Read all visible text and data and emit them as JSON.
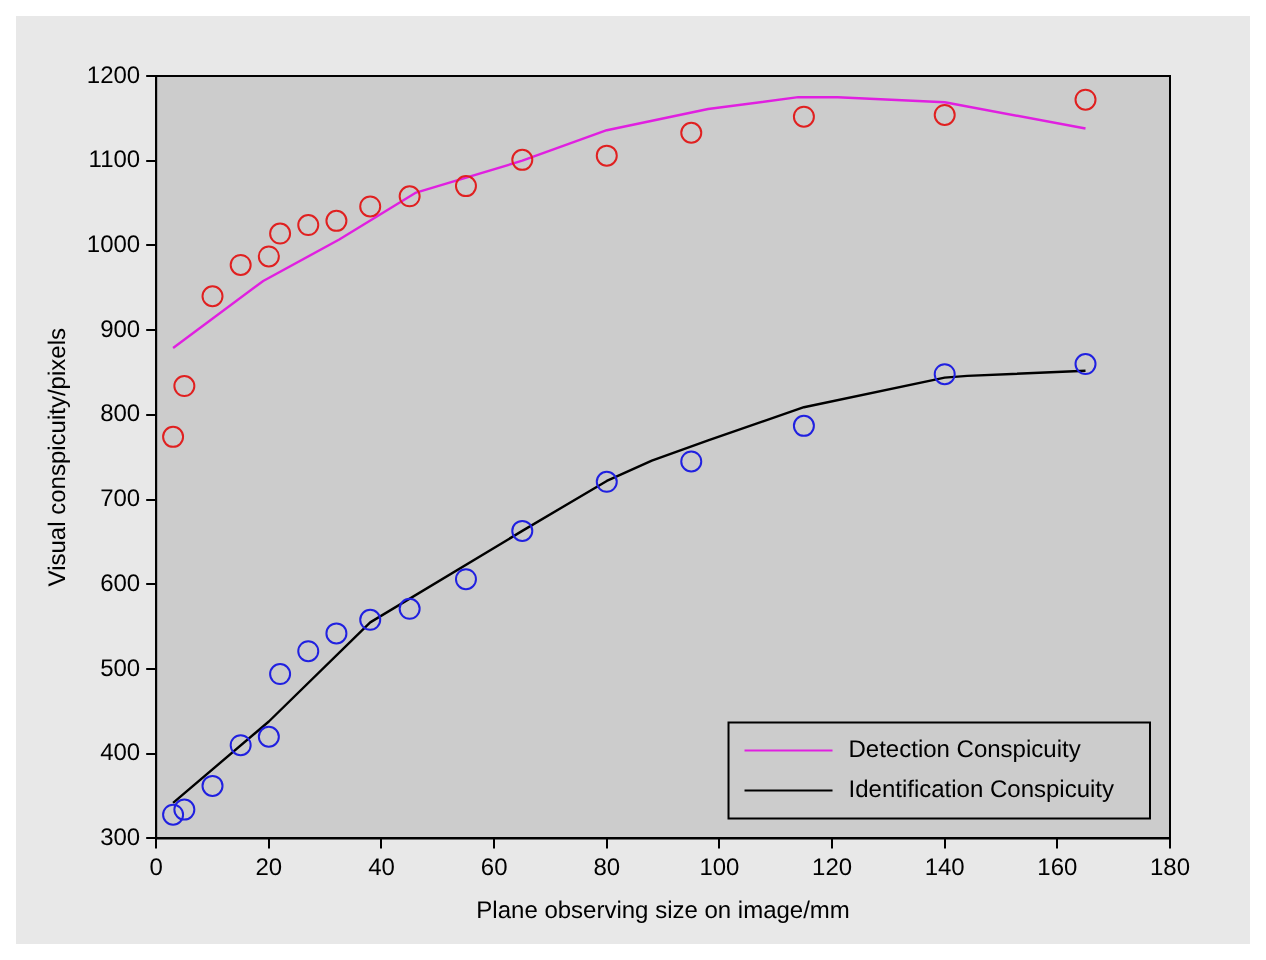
{
  "chart_data": {
    "type": "scatter",
    "xlabel": "Plane observing size on image/mm",
    "ylabel": "Visual conspicuity/pixels",
    "xlim": [
      0,
      180
    ],
    "xticks": [
      0,
      20,
      40,
      60,
      80,
      100,
      120,
      140,
      160,
      180
    ],
    "ylim": [
      300,
      1200
    ],
    "yticks": [
      300,
      400,
      500,
      600,
      700,
      800,
      900,
      1000,
      1100,
      1200
    ],
    "legend": "bottom right",
    "marker": "circle",
    "grid": false,
    "series": [
      {
        "color": "#e02020",
        "x": [
          3,
          5,
          10,
          15,
          20,
          22,
          27,
          32,
          38,
          45,
          55,
          65,
          80,
          95,
          115,
          140,
          165
        ],
        "values": [
          774,
          834,
          940,
          977,
          987,
          1014,
          1024,
          1029,
          1046,
          1058,
          1070,
          1101,
          1106,
          1133,
          1152,
          1154,
          1172
        ]
      },
      {
        "color": "#2020e0",
        "x": [
          3,
          5,
          10,
          15,
          20,
          22,
          27,
          32,
          38,
          45,
          55,
          65,
          80,
          95,
          115,
          140,
          165
        ],
        "values": [
          328,
          334,
          362,
          410,
          420,
          494,
          521,
          542,
          558,
          571,
          606,
          663,
          721,
          745,
          787,
          848,
          860
        ]
      },
      {
        "type": "line",
        "name": "Detection Conspicuity",
        "color": "#e020e0",
        "marker": "none",
        "x": [
          3,
          19,
          32.5,
          46,
          65,
          80,
          98,
          114,
          121,
          140,
          165
        ],
        "values": [
          879,
          958,
          1007,
          1062,
          1100,
          1136,
          1161,
          1175,
          1175,
          1169,
          1138
        ]
      },
      {
        "type": "line",
        "name": "Identification Conspicuity",
        "color": "#000000",
        "marker": "none",
        "x": [
          3,
          20,
          38,
          65,
          80,
          88,
          98,
          115,
          140,
          144,
          165
        ],
        "values": [
          342,
          438,
          555,
          663,
          722,
          746,
          770,
          809,
          844,
          846,
          852
        ]
      }
    ]
  }
}
